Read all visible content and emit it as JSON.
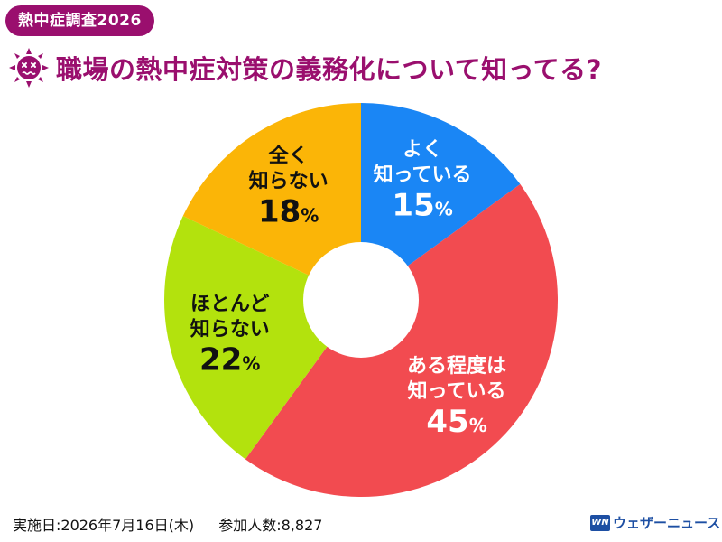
{
  "badge": "熱中症調査2026",
  "title": "職場の熱中症対策の義務化について知ってる?",
  "chart_data": {
    "type": "pie",
    "slices": [
      {
        "label_lines": [
          "よく",
          "知っている"
        ],
        "value": 15,
        "value_text": "15",
        "color": "#1a86f5",
        "text_color": "#ffffff"
      },
      {
        "label_lines": [
          "ある程度は",
          "知っている"
        ],
        "value": 45,
        "value_text": "45",
        "color": "#f24b50",
        "text_color": "#ffffff"
      },
      {
        "label_lines": [
          "ほとんど",
          "知らない"
        ],
        "value": 22,
        "value_text": "22",
        "color": "#b3e20d",
        "text_color": "#111111"
      },
      {
        "label_lines": [
          "全く",
          "知らない"
        ],
        "value": 18,
        "value_text": "18",
        "color": "#fbb507",
        "text_color": "#111111"
      }
    ],
    "unit": "%",
    "start": "12 o'clock",
    "direction": "clockwise",
    "donut": true
  },
  "footer": {
    "date": "実施日:2026年7月16日(木)",
    "participants": "参加人数:8,827"
  },
  "logo": {
    "mark": "WN",
    "text": "ウェザーニュース"
  },
  "icons": {
    "title_icon": "hot-face-icon"
  }
}
